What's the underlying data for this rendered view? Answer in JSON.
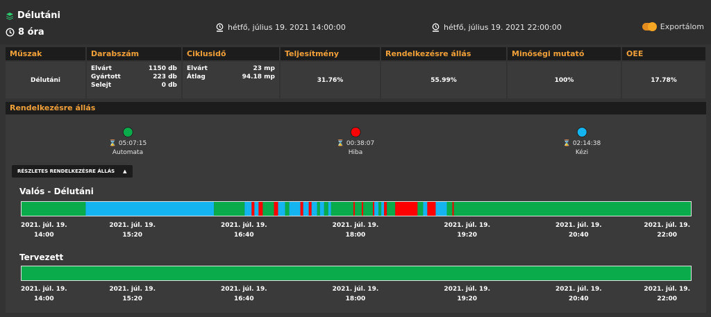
{
  "header": {
    "shift_name": "Délutáni",
    "shift_hours": "8 óra",
    "start_time": "hétfő, július 19. 2021 14:00:00",
    "end_time": "hétfő, július 19. 2021 22:00:00",
    "export_label": "Exportálom",
    "export_enabled": true
  },
  "kpi_table": {
    "headers": [
      "Műszak",
      "Darabszám",
      "Ciklusidő",
      "Teljesítmény",
      "Rendelkezésre állás",
      "Minőségi mutató",
      "OEE"
    ],
    "shift": "Délutáni",
    "count": [
      {
        "label": "Elvárt",
        "value": "1150 db"
      },
      {
        "label": "Gyártott",
        "value": "223 db"
      },
      {
        "label": "Selejt",
        "value": "0 db"
      }
    ],
    "cycle": [
      {
        "label": "Elvárt",
        "value": "23 mp"
      },
      {
        "label": "Átlag",
        "value": "94.18 mp"
      }
    ],
    "performance": "31.76%",
    "availability": "55.99%",
    "quality": "100%",
    "oee": "17.78%"
  },
  "availability_section": {
    "title": "Rendelkezésre állás",
    "statuses": [
      {
        "label": "Automata",
        "duration": "05:07:15",
        "color": "#0aab4a"
      },
      {
        "label": "Hiba",
        "duration": "00:38:07",
        "color": "#ff0000"
      },
      {
        "label": "Kézi",
        "duration": "02:14:38",
        "color": "#14b4f0"
      }
    ],
    "detail_button": "RÉSZLETES RENDELKEZÉSRE ÁLLÁS",
    "actual_title": "Valós - Délutáni",
    "planned_title": "Tervezett",
    "ticks": [
      {
        "date": "2021. júl. 19.",
        "time": "14:00"
      },
      {
        "date": "2021. júl. 19.",
        "time": "15:20"
      },
      {
        "date": "2021. júl. 19.",
        "time": "16:40"
      },
      {
        "date": "2021. júl. 19.",
        "time": "18:00"
      },
      {
        "date": "2021. júl. 19.",
        "time": "19:20"
      },
      {
        "date": "2021. júl. 19.",
        "time": "20:40"
      },
      {
        "date": "2021. júl. 19.",
        "time": "22:00"
      }
    ],
    "actual_segments": [
      {
        "start": "14:00",
        "end": "14:46",
        "status": "Automata"
      },
      {
        "start": "14:46",
        "end": "16:18",
        "status": "Kézi"
      },
      {
        "start": "16:18",
        "end": "16:40",
        "status": "Automata"
      },
      {
        "start": "16:40",
        "end": "16:45",
        "status": "Kézi"
      },
      {
        "start": "16:45",
        "end": "16:47",
        "status": "Hiba"
      },
      {
        "start": "16:47",
        "end": "16:50",
        "status": "Kézi"
      },
      {
        "start": "16:50",
        "end": "16:53",
        "status": "Hiba"
      },
      {
        "start": "16:53",
        "end": "17:01",
        "status": "Automata"
      },
      {
        "start": "17:01",
        "end": "17:04",
        "status": "Hiba"
      },
      {
        "start": "17:04",
        "end": "17:09",
        "status": "Kézi"
      },
      {
        "start": "17:09",
        "end": "17:12",
        "status": "Automata"
      },
      {
        "start": "17:12",
        "end": "17:20",
        "status": "Kézi"
      },
      {
        "start": "17:20",
        "end": "17:22",
        "status": "Hiba"
      },
      {
        "start": "17:22",
        "end": "17:26",
        "status": "Kézi"
      },
      {
        "start": "17:26",
        "end": "17:28",
        "status": "Hiba"
      },
      {
        "start": "17:28",
        "end": "17:32",
        "status": "Kézi"
      },
      {
        "start": "17:32",
        "end": "17:34",
        "status": "Automata"
      },
      {
        "start": "17:34",
        "end": "17:37",
        "status": "Kézi"
      },
      {
        "start": "17:37",
        "end": "17:40",
        "status": "Automata"
      },
      {
        "start": "17:40",
        "end": "17:42",
        "status": "Kézi"
      },
      {
        "start": "17:42",
        "end": "17:58",
        "status": "Automata"
      },
      {
        "start": "17:58",
        "end": "17:59",
        "status": "Hiba"
      },
      {
        "start": "17:59",
        "end": "18:04",
        "status": "Automata"
      },
      {
        "start": "18:04",
        "end": "18:05",
        "status": "Hiba"
      },
      {
        "start": "18:05",
        "end": "18:12",
        "status": "Automata"
      },
      {
        "start": "18:12",
        "end": "18:13",
        "status": "Hiba"
      },
      {
        "start": "18:13",
        "end": "18:16",
        "status": "Kézi"
      },
      {
        "start": "18:16",
        "end": "18:18",
        "status": "Automata"
      },
      {
        "start": "18:18",
        "end": "18:20",
        "status": "Kézi"
      },
      {
        "start": "18:20",
        "end": "18:22",
        "status": "Hiba"
      },
      {
        "start": "18:22",
        "end": "18:28",
        "status": "Automata"
      },
      {
        "start": "18:28",
        "end": "18:44",
        "status": "Hiba"
      },
      {
        "start": "18:44",
        "end": "18:48",
        "status": "Automata"
      },
      {
        "start": "18:48",
        "end": "18:51",
        "status": "Kézi"
      },
      {
        "start": "18:51",
        "end": "18:57",
        "status": "Hiba"
      },
      {
        "start": "18:57",
        "end": "19:05",
        "status": "Kézi"
      },
      {
        "start": "19:05",
        "end": "19:09",
        "status": "Automata"
      },
      {
        "start": "19:09",
        "end": "19:10",
        "status": "Hiba"
      },
      {
        "start": "19:10",
        "end": "22:00",
        "status": "Automata"
      }
    ],
    "planned_segments": [
      {
        "start": "14:00",
        "end": "22:00",
        "status": "Automata"
      }
    ]
  }
}
